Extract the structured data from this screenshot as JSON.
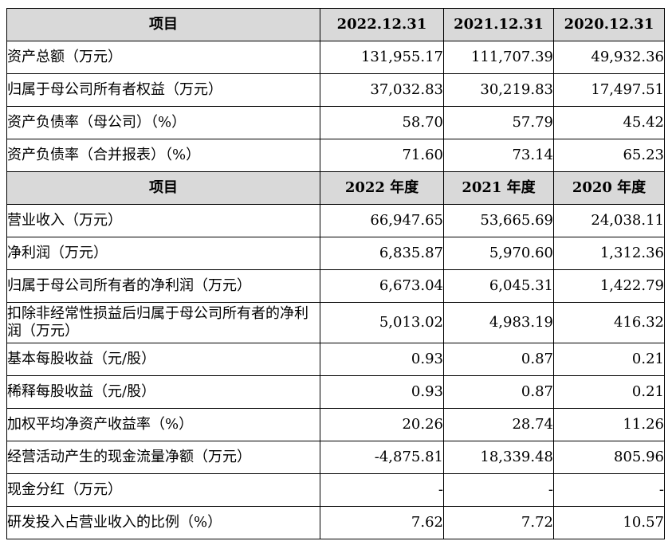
{
  "table": {
    "header1": {
      "item": "项目",
      "c1": "2022.12.31",
      "c2": "2021.12.31",
      "c3": "2020.12.31"
    },
    "rows1": [
      {
        "label": "资产总额（万元）",
        "v1": "131,955.17",
        "v2": "111,707.39",
        "v3": "49,932.36"
      },
      {
        "label": "归属于母公司所有者权益（万元）",
        "v1": "37,032.83",
        "v2": "30,219.83",
        "v3": "17,497.51"
      },
      {
        "label": "资产负债率（母公司）（%）",
        "v1": "58.70",
        "v2": "57.79",
        "v3": "45.42"
      },
      {
        "label": "资产负债率（合并报表）（%）",
        "v1": "71.60",
        "v2": "73.14",
        "v3": "65.23"
      }
    ],
    "header2": {
      "item": "项目",
      "c1": "2022 年度",
      "c2": "2021 年度",
      "c3": "2020 年度"
    },
    "rows2": [
      {
        "label": "营业收入（万元）",
        "v1": "66,947.65",
        "v2": "53,665.69",
        "v3": "24,038.11"
      },
      {
        "label": "净利润（万元）",
        "v1": "6,835.87",
        "v2": "5,970.60",
        "v3": "1,312.36"
      },
      {
        "label": "归属于母公司所有者的净利润（万元）",
        "v1": "6,673.04",
        "v2": "6,045.31",
        "v3": "1,422.79"
      },
      {
        "label": "扣除非经常性损益后归属于母公司所有者的净利润（万元）",
        "v1": "5,013.02",
        "v2": "4,983.19",
        "v3": "416.32"
      },
      {
        "label": "基本每股收益（元/股）",
        "v1": "0.93",
        "v2": "0.87",
        "v3": "0.21"
      },
      {
        "label": "稀释每股收益（元/股）",
        "v1": "0.93",
        "v2": "0.87",
        "v3": "0.21"
      },
      {
        "label": "加权平均净资产收益率（%）",
        "v1": "20.26",
        "v2": "28.74",
        "v3": "11.26"
      },
      {
        "label": "经营活动产生的现金流量净额（万元）",
        "v1": "-4,875.81",
        "v2": "18,339.48",
        "v3": "805.96"
      },
      {
        "label": "现金分红（万元）",
        "v1": "-",
        "v2": "-",
        "v3": "-"
      },
      {
        "label": "研发投入占营业收入的比例（%）",
        "v1": "7.62",
        "v2": "7.72",
        "v3": "10.57"
      }
    ]
  }
}
